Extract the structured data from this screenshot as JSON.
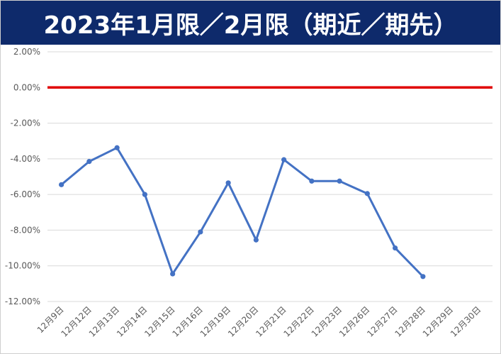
{
  "title": "2023年1月限／2月限（期近／期先）",
  "colors": {
    "title_bg": "#0e2a6b",
    "title_text": "#ffffff",
    "series_line": "#4472c4",
    "reference_line": "#e00000",
    "grid": "#d9d9d9",
    "tick_text": "#595959"
  },
  "chart_data": {
    "type": "line",
    "title": "2023年1月限／2月限（期近／期先）",
    "xlabel": "",
    "ylabel": "",
    "ylim": [
      -12,
      2
    ],
    "y_tick_values": [
      2,
      0,
      -2,
      -4,
      -6,
      -8,
      -10,
      -12
    ],
    "y_tick_labels": [
      "2.00%",
      "0.00%",
      "-2.00%",
      "-4.00%",
      "-6.00%",
      "-8.00%",
      "-10.00%",
      "-12.00%"
    ],
    "categories": [
      "12月9日",
      "12月12日",
      "12月13日",
      "12月14日",
      "12月15日",
      "12月16日",
      "12月19日",
      "12月20日",
      "12月21日",
      "12月22日",
      "12月23日",
      "12月26日",
      "12月27日",
      "12月28日",
      "12月29日",
      "12月30日"
    ],
    "grid": true,
    "legend": "none",
    "series": [
      {
        "values": [
          -5.45,
          -4.15,
          -3.38,
          -6.0,
          -10.45,
          -8.1,
          -5.35,
          -8.55,
          -4.05,
          -5.25,
          -5.25,
          -5.95,
          -9.0,
          -10.6,
          null,
          null
        ]
      }
    ],
    "reference_lines": [
      {
        "value": 0.0,
        "color": "#e00000"
      }
    ]
  }
}
